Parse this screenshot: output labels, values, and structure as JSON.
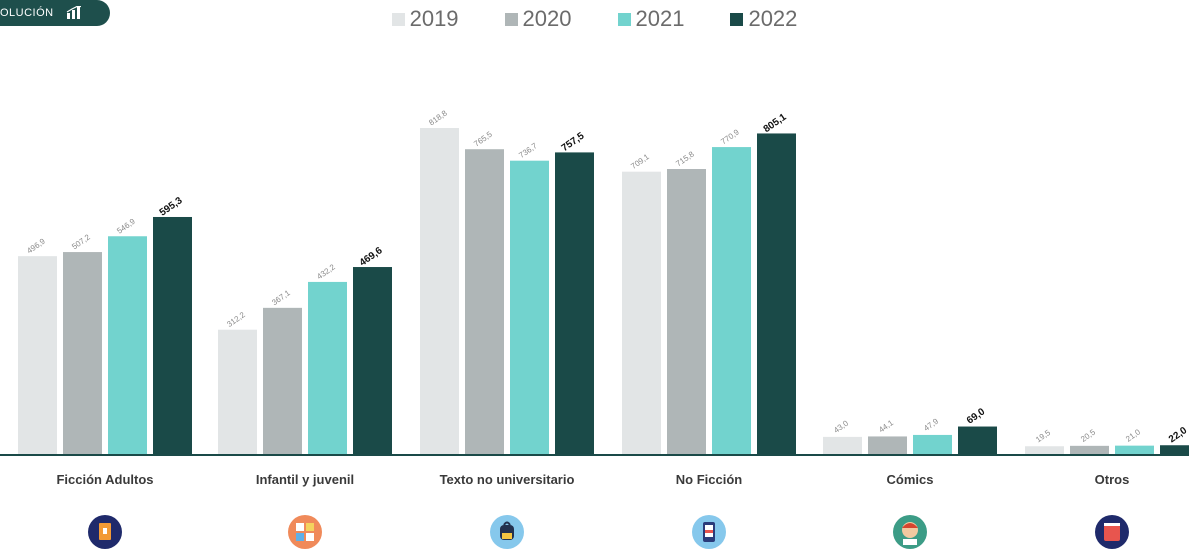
{
  "badge": {
    "label": "OLUCIÓN",
    "icon": "bar-chart-icon"
  },
  "colors": {
    "2019": "#e2e5e6",
    "2020": "#afb6b7",
    "2021": "#72d3ce",
    "2022": "#1a4a48",
    "axis": "#1a4a48"
  },
  "chart_data": {
    "type": "bar",
    "categories": [
      "Ficción Adultos",
      "Infantil y juvenil",
      "Texto no universitario",
      "No Ficción",
      "Cómics",
      "Otros"
    ],
    "category_icons": [
      "book-icon",
      "blocks-icon",
      "backpack-icon",
      "smartphone-icon",
      "comic-character-icon",
      "closed-book-icon"
    ],
    "series": [
      {
        "name": "2019",
        "values_label": [
          "496,9",
          "312,2",
          "818,8",
          "709,1",
          "43,0",
          "19,5"
        ],
        "values": [
          496.9,
          312.2,
          818.8,
          709.1,
          43.0,
          19.5
        ]
      },
      {
        "name": "2020",
        "values_label": [
          "507,2",
          "367,1",
          "765,5",
          "715,8",
          "44,1",
          "20,5"
        ],
        "values": [
          507.2,
          367.1,
          765.5,
          715.8,
          44.1,
          20.5
        ]
      },
      {
        "name": "2021",
        "values_label": [
          "546,9",
          "432,2",
          "736,7",
          "770,9",
          "47,9",
          "21,0"
        ],
        "values": [
          546.9,
          432.2,
          736.7,
          770.9,
          47.9,
          21.0
        ]
      },
      {
        "name": "2022",
        "values_label": [
          "595,3",
          "469,6",
          "757,5",
          "805,1",
          "69,0",
          "22,0"
        ],
        "values": [
          595.3,
          469.6,
          757.5,
          805.1,
          69.0,
          22.0
        ]
      }
    ],
    "ylim": [
      0,
      860
    ],
    "grid": false,
    "legend_position": "top-center"
  }
}
